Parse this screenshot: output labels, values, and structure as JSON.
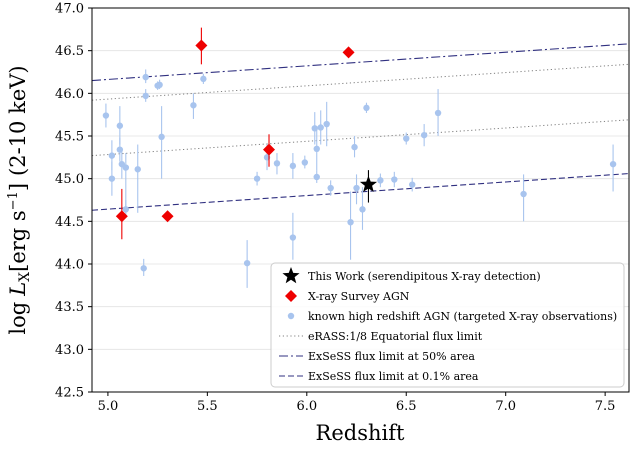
{
  "chart_data": {
    "type": "scatter",
    "xlabel": "Redshift",
    "ylabel": "log L_X [erg s^-1] (2-10 keV)",
    "ylabel_parts": {
      "log": "log",
      "L": "L",
      "X": "X",
      "unit": "[erg s",
      "exp": "−1",
      "close": "]",
      "band": "(2-10 keV)"
    },
    "xlim": [
      4.92,
      7.62
    ],
    "ylim": [
      42.5,
      47.0
    ],
    "x_ticks": [
      5.0,
      5.5,
      6.0,
      6.5,
      7.0,
      7.5
    ],
    "x_tick_labels": [
      "5.0",
      "5.5",
      "6.0",
      "6.5",
      "7.0",
      "7.5"
    ],
    "y_ticks": [
      42.5,
      43.0,
      43.5,
      44.0,
      44.5,
      45.0,
      45.5,
      46.0,
      46.5,
      47.0
    ],
    "y_tick_labels": [
      "42.5",
      "43.0",
      "43.5",
      "44.0",
      "44.5",
      "45.0",
      "45.5",
      "46.0",
      "46.5",
      "47.0"
    ],
    "legend_position": "lower-right",
    "colors": {
      "this_work": "#000000",
      "survey": "#ee0000",
      "known": "#a8c4ee",
      "erass": "#808080",
      "exsess50": "#303080",
      "exsess01": "#303080"
    },
    "series": [
      {
        "name": "This Work (serendipitous X-ray detection)",
        "marker": "star",
        "points": [
          {
            "x": 6.31,
            "y": 44.93,
            "ylo": 44.72,
            "yhi": 45.1
          }
        ]
      },
      {
        "name": "X-ray Survey AGN",
        "marker": "diamond",
        "points": [
          {
            "x": 5.07,
            "y": 44.56,
            "ylo": 44.29,
            "yhi": 44.88
          },
          {
            "x": 5.3,
            "y": 44.56,
            "ylo": 44.56,
            "yhi": 44.56
          },
          {
            "x": 5.47,
            "y": 46.56,
            "ylo": 46.34,
            "yhi": 46.77
          },
          {
            "x": 5.81,
            "y": 45.34,
            "ylo": 45.14,
            "yhi": 45.52
          },
          {
            "x": 6.21,
            "y": 46.48,
            "ylo": 46.48,
            "yhi": 46.48
          }
        ]
      },
      {
        "name": "known high redshift AGN (targeted X-ray observations)",
        "marker": "circle",
        "points": [
          {
            "x": 4.99,
            "y": 45.74,
            "ylo": 45.6,
            "yhi": 45.88
          },
          {
            "x": 5.02,
            "y": 45.27,
            "ylo": 45.1,
            "yhi": 45.45
          },
          {
            "x": 5.02,
            "y": 45.0,
            "ylo": 44.8,
            "yhi": 45.2
          },
          {
            "x": 5.06,
            "y": 45.62,
            "ylo": 45.4,
            "yhi": 45.85
          },
          {
            "x": 5.06,
            "y": 45.34,
            "ylo": 45.2,
            "yhi": 45.48
          },
          {
            "x": 5.07,
            "y": 45.17,
            "ylo": 45.0,
            "yhi": 45.33
          },
          {
            "x": 5.09,
            "y": 45.13,
            "ylo": 44.65,
            "yhi": 45.3
          },
          {
            "x": 5.09,
            "y": 44.64,
            "ylo": 44.55,
            "yhi": 44.75
          },
          {
            "x": 5.15,
            "y": 45.11,
            "ylo": 44.6,
            "yhi": 45.4
          },
          {
            "x": 5.19,
            "y": 46.19,
            "ylo": 46.12,
            "yhi": 46.28
          },
          {
            "x": 5.19,
            "y": 45.97,
            "ylo": 45.9,
            "yhi": 46.05
          },
          {
            "x": 5.18,
            "y": 43.95,
            "ylo": 43.86,
            "yhi": 44.06
          },
          {
            "x": 5.25,
            "y": 46.09,
            "ylo": 46.04,
            "yhi": 46.14
          },
          {
            "x": 5.26,
            "y": 46.1,
            "ylo": 46.05,
            "yhi": 46.16
          },
          {
            "x": 5.27,
            "y": 45.49,
            "ylo": 45.0,
            "yhi": 45.85
          },
          {
            "x": 5.43,
            "y": 45.86,
            "ylo": 45.7,
            "yhi": 46.0
          },
          {
            "x": 5.48,
            "y": 46.17,
            "ylo": 46.11,
            "yhi": 46.23
          },
          {
            "x": 5.7,
            "y": 44.01,
            "ylo": 43.72,
            "yhi": 44.28
          },
          {
            "x": 5.75,
            "y": 45.0,
            "ylo": 44.92,
            "yhi": 45.08
          },
          {
            "x": 5.8,
            "y": 45.25,
            "ylo": 45.1,
            "yhi": 45.4
          },
          {
            "x": 5.85,
            "y": 45.18,
            "ylo": 45.05,
            "yhi": 45.3
          },
          {
            "x": 5.93,
            "y": 45.15,
            "ylo": 45.0,
            "yhi": 45.3
          },
          {
            "x": 5.93,
            "y": 44.31,
            "ylo": 44.05,
            "yhi": 44.6
          },
          {
            "x": 5.99,
            "y": 45.19,
            "ylo": 45.12,
            "yhi": 45.27
          },
          {
            "x": 6.04,
            "y": 45.59,
            "ylo": 45.4,
            "yhi": 45.78
          },
          {
            "x": 6.05,
            "y": 45.35,
            "ylo": 45.1,
            "yhi": 45.6
          },
          {
            "x": 6.05,
            "y": 45.02,
            "ylo": 44.95,
            "yhi": 45.1
          },
          {
            "x": 6.07,
            "y": 45.6,
            "ylo": 45.4,
            "yhi": 45.8
          },
          {
            "x": 6.1,
            "y": 45.64,
            "ylo": 45.38,
            "yhi": 45.9
          },
          {
            "x": 6.12,
            "y": 44.89,
            "ylo": 44.8,
            "yhi": 44.98
          },
          {
            "x": 6.22,
            "y": 44.49,
            "ylo": 44.05,
            "yhi": 44.85
          },
          {
            "x": 6.24,
            "y": 45.37,
            "ylo": 45.25,
            "yhi": 45.5
          },
          {
            "x": 6.25,
            "y": 44.89,
            "ylo": 44.7,
            "yhi": 45.05
          },
          {
            "x": 6.28,
            "y": 44.64,
            "ylo": 44.4,
            "yhi": 44.9
          },
          {
            "x": 6.3,
            "y": 45.83,
            "ylo": 45.77,
            "yhi": 45.89
          },
          {
            "x": 6.37,
            "y": 44.98,
            "ylo": 44.9,
            "yhi": 45.06
          },
          {
            "x": 6.44,
            "y": 44.99,
            "ylo": 44.9,
            "yhi": 45.08
          },
          {
            "x": 6.5,
            "y": 45.47,
            "ylo": 45.4,
            "yhi": 45.54
          },
          {
            "x": 6.53,
            "y": 44.93,
            "ylo": 44.85,
            "yhi": 45.01
          },
          {
            "x": 6.59,
            "y": 45.51,
            "ylo": 45.38,
            "yhi": 45.64
          },
          {
            "x": 6.66,
            "y": 45.77,
            "ylo": 45.5,
            "yhi": 46.05
          },
          {
            "x": 7.09,
            "y": 44.82,
            "ylo": 44.5,
            "yhi": 45.05
          },
          {
            "x": 7.54,
            "y": 45.17,
            "ylo": 44.85,
            "yhi": 45.4
          }
        ]
      }
    ],
    "lines": [
      {
        "name": "eRASS:1/8 Equatorial flux limit",
        "style": "dotted",
        "points": [
          [
            4.92,
            45.27
          ],
          [
            7.62,
            45.69
          ]
        ]
      },
      {
        "name": "eRASS:1/8 Equatorial flux limit",
        "style": "dotted",
        "legend": false,
        "points": [
          [
            4.92,
            45.92
          ],
          [
            7.62,
            46.34
          ]
        ]
      },
      {
        "name": "ExSeSS flux limit at 50% area",
        "style": "dashdot",
        "points": [
          [
            4.92,
            46.15
          ],
          [
            7.62,
            46.58
          ]
        ]
      },
      {
        "name": "ExSeSS flux limit at 0.1% area",
        "style": "dashed",
        "points": [
          [
            4.92,
            44.63
          ],
          [
            7.62,
            45.06
          ]
        ]
      }
    ],
    "legend": [
      {
        "label": "This Work (serendipitous X-ray detection)",
        "symbol": "star"
      },
      {
        "label": "X-ray Survey AGN",
        "symbol": "diamond"
      },
      {
        "label": "known high redshift AGN (targeted X-ray observations)",
        "symbol": "circle"
      },
      {
        "label": "eRASS:1/8 Equatorial flux limit",
        "symbol": "dotted"
      },
      {
        "label": "ExSeSS flux limit at 50% area",
        "symbol": "dashdot"
      },
      {
        "label": "ExSeSS flux limit at 0.1% area",
        "symbol": "dashed"
      }
    ]
  }
}
